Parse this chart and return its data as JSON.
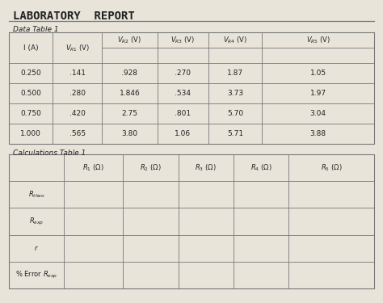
{
  "title": "LABORATORY  REPORT",
  "subtitle1": "Data Table 1",
  "subtitle2": "Calculations Table 1",
  "data_rows": [
    [
      "0.250",
      ".141",
      ".928",
      ".270",
      "1.87",
      "1.05"
    ],
    [
      "0.500",
      ".280",
      "1.846",
      ".534",
      "3.73",
      "1.97"
    ],
    [
      "0.750",
      ".420",
      "2.75",
      ".801",
      "5.70",
      "3.04"
    ],
    [
      "1.000",
      ".565",
      "3.80",
      "1.06",
      "5.71",
      "3.88"
    ]
  ],
  "bg_color": "#e8e4da",
  "line_color": "#777777",
  "text_color": "#222222"
}
